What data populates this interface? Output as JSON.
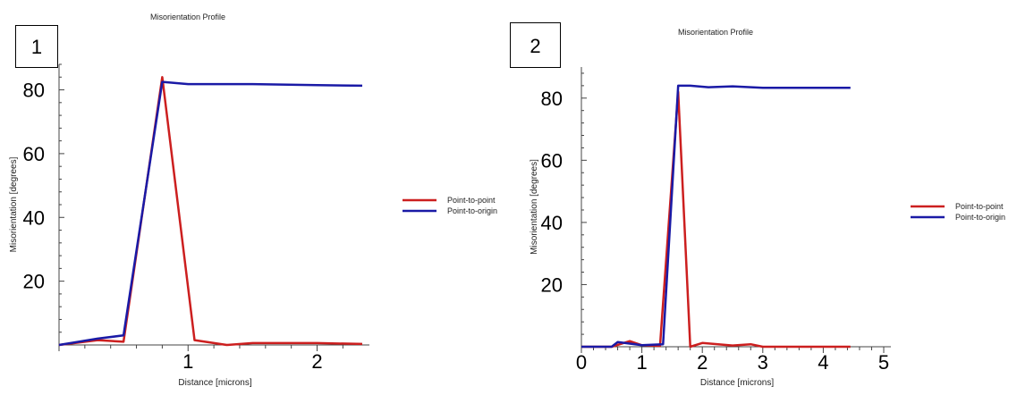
{
  "chart_data": [
    {
      "type": "line",
      "panel_label": "1",
      "title": "Misorientation Profile",
      "xlabel": "Distance [microns]",
      "ylabel": "Misorientation [degrees]",
      "xlim": [
        0,
        2.35
      ],
      "ylim": [
        0,
        88
      ],
      "x_ticks": [
        1,
        2
      ],
      "y_ticks": [
        20,
        40,
        60,
        80
      ],
      "grid": false,
      "legend_position": "right",
      "series": [
        {
          "name": "Point-to-point",
          "color": "#cc1f1f",
          "points": [
            [
              0,
              0
            ],
            [
              0.3,
              1.5
            ],
            [
              0.5,
              1.0
            ],
            [
              0.8,
              84
            ],
            [
              1.05,
              1.5
            ],
            [
              1.3,
              0
            ],
            [
              1.5,
              0.6
            ],
            [
              2.0,
              0.6
            ],
            [
              2.35,
              0.3
            ]
          ]
        },
        {
          "name": "Point-to-origin",
          "color": "#1a1aa6",
          "points": [
            [
              0,
              0
            ],
            [
              0.3,
              2.0
            ],
            [
              0.5,
              3.0
            ],
            [
              0.8,
              82.5
            ],
            [
              1.0,
              81.8
            ],
            [
              1.5,
              81.8
            ],
            [
              2.0,
              81.5
            ],
            [
              2.35,
              81.3
            ]
          ]
        }
      ]
    },
    {
      "type": "line",
      "panel_label": "2",
      "title": "Misorientation Profile",
      "xlabel": "Distance [microns]",
      "ylabel": "Misorientation [degrees]",
      "xlim": [
        0,
        5
      ],
      "ylim": [
        0,
        90
      ],
      "x_ticks": [
        0,
        1,
        2,
        3,
        4,
        5
      ],
      "y_ticks": [
        20,
        40,
        60,
        80
      ],
      "grid": false,
      "legend_position": "right",
      "series": [
        {
          "name": "Point-to-point",
          "color": "#cc1f1f",
          "points": [
            [
              0,
              0
            ],
            [
              0.5,
              0
            ],
            [
              0.8,
              1.8
            ],
            [
              1.0,
              0.5
            ],
            [
              1.3,
              0.3
            ],
            [
              1.6,
              82
            ],
            [
              1.8,
              0
            ],
            [
              2.0,
              1.2
            ],
            [
              2.5,
              0.4
            ],
            [
              2.8,
              0.8
            ],
            [
              3.0,
              0
            ],
            [
              4.45,
              0
            ]
          ]
        },
        {
          "name": "Point-to-origin",
          "color": "#1a1aa6",
          "points": [
            [
              0,
              0
            ],
            [
              0.5,
              0
            ],
            [
              0.6,
              1.5
            ],
            [
              1.0,
              0.5
            ],
            [
              1.35,
              0.8
            ],
            [
              1.6,
              84
            ],
            [
              1.8,
              84
            ],
            [
              2.1,
              83.5
            ],
            [
              2.5,
              83.8
            ],
            [
              3.0,
              83.3
            ],
            [
              4.45,
              83.3
            ]
          ]
        }
      ]
    }
  ]
}
